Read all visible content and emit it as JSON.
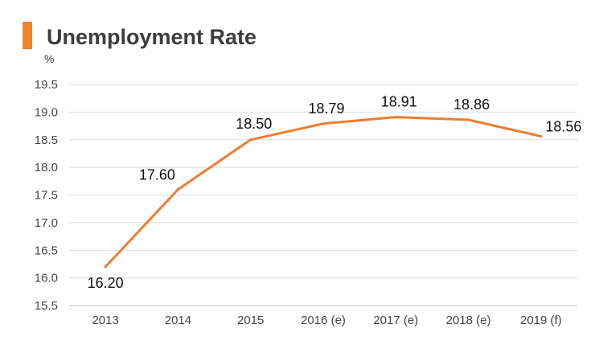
{
  "chart_data": {
    "type": "line",
    "title": "Unemployment Rate",
    "ylabel": "%",
    "xlabel": "",
    "categories": [
      "2013",
      "2014",
      "2015",
      "2016 (e)",
      "2017 (e)",
      "2018 (e)",
      "2019 (f)"
    ],
    "values": [
      16.2,
      17.6,
      18.5,
      18.79,
      18.91,
      18.86,
      18.56
    ],
    "data_labels": [
      "16.20",
      "17.60",
      "18.50",
      "18.79",
      "18.91",
      "18.86",
      "18.56"
    ],
    "ylim": [
      15.5,
      19.5
    ],
    "yticks": [
      "15.5",
      "16.0",
      "16.5",
      "17.0",
      "17.5",
      "18.0",
      "18.5",
      "19.0",
      "19.5"
    ],
    "grid": true,
    "legend": "none",
    "line_color": "#ed7d31",
    "title_accent_color": "#f08228"
  }
}
